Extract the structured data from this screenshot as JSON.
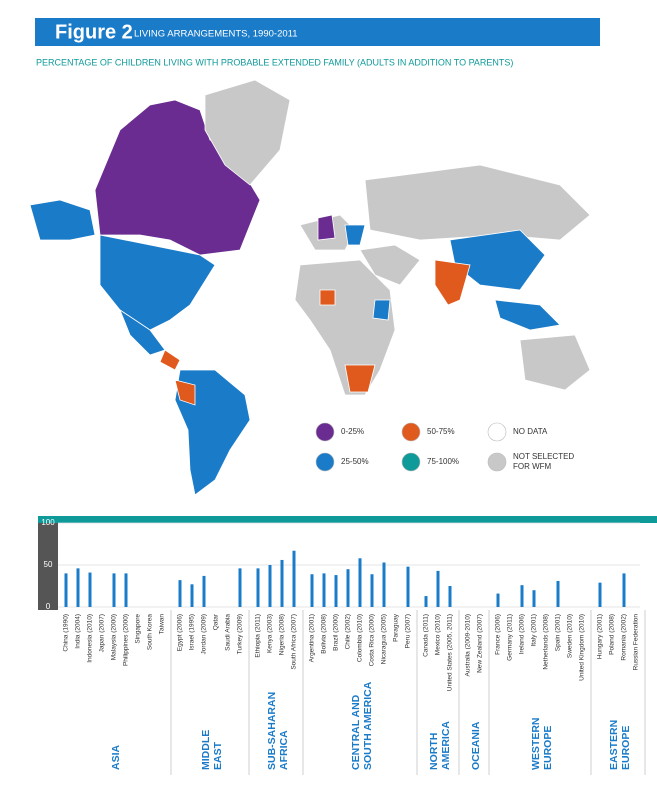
{
  "chart_data": {
    "type": "bar",
    "figure_label": "Figure 2",
    "title": "LIVING ARRANGEMENTS, 1990-2011",
    "subtitle": "PERCENTAGE OF CHILDREN LIVING WITH PROBABLE EXTENDED FAMILY (ADULTS IN ADDITION TO PARENTS)",
    "legend": [
      {
        "label": [
          "0-25%"
        ],
        "color": "#6a2c91"
      },
      {
        "label": [
          "50-75%"
        ],
        "color": "#e05a1e"
      },
      {
        "label": [
          "NO DATA"
        ],
        "color": "#ffffff"
      },
      {
        "label": [
          "25-50%"
        ],
        "color": "#1a7bc9"
      },
      {
        "label": [
          "75-100%"
        ],
        "color": "#0f9a9a"
      },
      {
        "label": [
          "NOT SELECTED",
          "FOR WFM"
        ],
        "color": "#c8c8c8"
      }
    ],
    "color": "#1a7bc9",
    "ylim": [
      0,
      100
    ],
    "yticks": [
      0,
      50,
      100
    ],
    "grid": true,
    "groups": [
      {
        "name": [
          "ASIA"
        ],
        "categories": [
          "China (1990)",
          "India (2004)",
          "Indonesia (2010)",
          "Japan (2007)",
          "Malaysia (2000)",
          "Philippines (2000)",
          "Singapore",
          "South Korea",
          "Taiwan"
        ],
        "values": [
          40,
          46,
          41,
          null,
          40,
          40,
          null,
          null,
          null
        ]
      },
      {
        "name": [
          "MIDDLE",
          "EAST"
        ],
        "categories": [
          "Egypt (2006)",
          "Israel (1995)",
          "Jordan (2009)",
          "Qatar",
          "Saudi Arabia",
          "Turkey (2009)"
        ],
        "values": [
          32,
          27,
          37,
          null,
          null,
          46
        ]
      },
      {
        "name": [
          "SUB-SAHARAN",
          "AFRICA"
        ],
        "categories": [
          "Ethiopia (2011)",
          "Kenya (2003)",
          "Nigeria (2008)",
          "South Africa (2007)"
        ],
        "values": [
          46,
          50,
          56,
          67
        ]
      },
      {
        "name": [
          "CENTRAL AND",
          "SOUTH AMERICA"
        ],
        "categories": [
          "Argentina (2001)",
          "Bolivia (2008)",
          "Brazil (2000)",
          "Chile (2002)",
          "Colombia (2010)",
          "Costa Rica (2000)",
          "Nicaragua (2005)",
          "Paraguay",
          "Peru (2007)"
        ],
        "values": [
          39,
          40,
          38,
          45,
          58,
          39,
          53,
          null,
          48
        ]
      },
      {
        "name": [
          "NORTH",
          "AMERICA"
        ],
        "categories": [
          "Canada (2011)",
          "Mexico (2010)",
          "United States (2005, 2011)"
        ],
        "values": [
          13,
          43,
          25
        ]
      },
      {
        "name": [
          "OCEANIA"
        ],
        "categories": [
          "Australia (2009-2010)",
          "New Zealand (2007)"
        ],
        "values": [
          null,
          null
        ]
      },
      {
        "name": [
          "WESTERN",
          "EUROPE"
        ],
        "categories": [
          "France (2006)",
          "Germany (2011)",
          "Ireland (2006)",
          "Italy (2001)",
          "Netherlands (2008)",
          "Spain (2001)",
          "Sweden (2010)",
          "United Kingdom (2010)"
        ],
        "values": [
          16,
          null,
          26,
          20,
          null,
          31,
          null,
          null
        ]
      },
      {
        "name": [
          "EASTERN",
          "EUROPE"
        ],
        "categories": [
          "Hungary (2001)",
          "Poland (2008)",
          "Romania (2002)",
          "Russian Federation"
        ],
        "values": [
          29,
          null,
          40,
          null
        ]
      }
    ]
  }
}
